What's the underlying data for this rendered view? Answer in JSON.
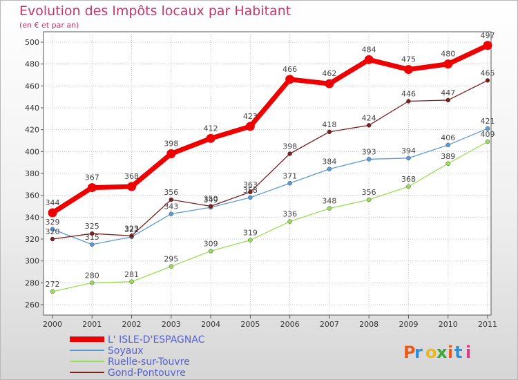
{
  "title": "Evolution des Impôts locaux par Habitant",
  "subtitle": "(en € et par an)",
  "brand": "Proxiti",
  "chart_data": {
    "type": "line",
    "x": [
      "2000",
      "2001",
      "2002",
      "2003",
      "2004",
      "2005",
      "2006",
      "2007",
      "2008",
      "2009",
      "2010",
      "2011"
    ],
    "ylim": [
      260,
      500
    ],
    "yticks": [
      260,
      280,
      300,
      320,
      340,
      360,
      380,
      400,
      420,
      440,
      460,
      480,
      500
    ],
    "grid": true,
    "series": [
      {
        "name": "L' ISLE-D'ESPAGNAC",
        "color": "#ee0000",
        "values": [
          344,
          367,
          368,
          398,
          412,
          423,
          466,
          462,
          484,
          475,
          480,
          497
        ]
      },
      {
        "name": "Soyaux",
        "color": "#5b9bd5",
        "values": [
          329,
          315,
          322,
          343,
          349,
          358,
          371,
          384,
          393,
          394,
          406,
          421
        ]
      },
      {
        "name": "Ruelle-sur-Touvre",
        "color": "#99dd55",
        "values": [
          272,
          280,
          281,
          295,
          309,
          319,
          336,
          348,
          356,
          368,
          389,
          409
        ]
      },
      {
        "name": "Gond-Pontouvre",
        "color": "#7a1e1e",
        "values": [
          320,
          325,
          323,
          356,
          350,
          363,
          398,
          418,
          424,
          446,
          447,
          465
        ]
      }
    ]
  }
}
